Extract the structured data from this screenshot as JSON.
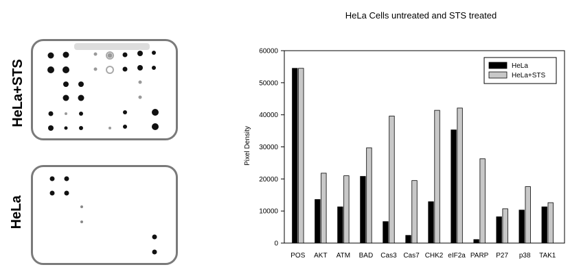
{
  "blots": {
    "top_label": "HeLa+STS",
    "bottom_label": "HeLa"
  },
  "chart_data": {
    "type": "bar",
    "title": "HeLa Cells untreated and STS treated",
    "xlabel": "",
    "ylabel": "Pixel Density",
    "ylim": [
      0,
      60000
    ],
    "yticks": [
      0,
      10000,
      20000,
      30000,
      40000,
      50000,
      60000
    ],
    "grid": false,
    "legend_position": "top-right",
    "categories": [
      "POS",
      "AKT",
      "ATM",
      "BAD",
      "Cas3",
      "Cas7",
      "CHK2",
      "eIF2a",
      "PARP",
      "P27",
      "p38",
      "TAK1"
    ],
    "series": [
      {
        "name": "HeLa",
        "color": "#000000",
        "values": [
          54500,
          13600,
          11300,
          20800,
          6700,
          2400,
          12900,
          35300,
          1100,
          8200,
          10300,
          11300
        ]
      },
      {
        "name": "HeLa+STS",
        "color": "#c8c8c8",
        "values": [
          54500,
          21800,
          21000,
          29700,
          39600,
          19500,
          41400,
          42100,
          26300,
          10700,
          17600,
          12600
        ]
      }
    ]
  }
}
